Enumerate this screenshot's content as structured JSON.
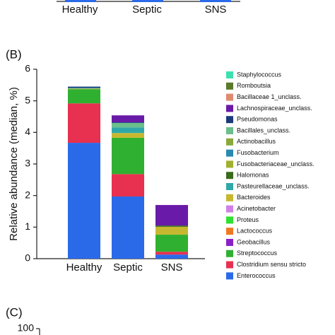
{
  "chart_data": [
    {
      "type": "bar",
      "categories": [
        "Healthy",
        "Septic",
        "SNS"
      ]
    },
    {
      "type": "stacked_bar",
      "label": "(B)",
      "ylabel": "Relative abundance (median, %)",
      "categories": [
        "Healthy",
        "Septic",
        "SNS"
      ],
      "ylim": [
        0,
        6
      ],
      "yticks": [
        0,
        1,
        2,
        3,
        4,
        5,
        6
      ],
      "series": [
        {
          "name": "Staphylococcus",
          "color": "#3de0b0",
          "values": [
            0,
            0,
            0
          ]
        },
        {
          "name": "Romboutsia",
          "color": "#5a7a2a",
          "values": [
            0,
            0,
            0
          ]
        },
        {
          "name": "Bacillaceae 1_unclass.",
          "color": "#e08a70",
          "values": [
            0,
            0,
            0
          ]
        },
        {
          "name": "Lachnospiraceae_unclass.",
          "color": "#6a1aa8",
          "values": [
            0,
            0.22,
            0.65
          ]
        },
        {
          "name": "Pseudomonas",
          "color": "#1a3a7a",
          "values": [
            0.04,
            0.02,
            0
          ]
        },
        {
          "name": "Bacillales_unclass.",
          "color": "#6abf8a",
          "values": [
            0,
            0.14,
            0
          ]
        },
        {
          "name": "Actinobacillus",
          "color": "#8aa83a",
          "values": [
            0,
            0,
            0
          ]
        },
        {
          "name": "Fusobacterium",
          "color": "#2a8ab0",
          "values": [
            0,
            0,
            0
          ]
        },
        {
          "name": "Fusobacteriaceae_unclass.",
          "color": "#a0b030",
          "values": [
            0,
            0,
            0
          ]
        },
        {
          "name": "Halomonas",
          "color": "#3a6a1a",
          "values": [
            0,
            0,
            0.04
          ]
        },
        {
          "name": "Pasteurellaceae_unclass.",
          "color": "#30a8a8",
          "values": [
            0.02,
            0.18,
            0
          ]
        },
        {
          "name": "Bacteroides",
          "color": "#c8b830",
          "values": [
            0.02,
            0.15,
            0.25
          ]
        },
        {
          "name": "Acinetobacter",
          "color": "#d080e8",
          "values": [
            0,
            0,
            0
          ]
        },
        {
          "name": "Proteus",
          "color": "#30e030",
          "values": [
            0,
            0,
            0
          ]
        },
        {
          "name": "Lactococcus",
          "color": "#f07820",
          "values": [
            0,
            0,
            0
          ]
        },
        {
          "name": "Geobacillus",
          "color": "#8a20c8",
          "values": [
            0,
            0,
            0
          ]
        },
        {
          "name": "Streptococcus",
          "color": "#30b030",
          "values": [
            0.45,
            1.15,
            0.54
          ]
        },
        {
          "name": "Clostridium sensu stricto",
          "color": "#e83050",
          "values": [
            1.25,
            0.71,
            0.09
          ]
        },
        {
          "name": "Enterococcus",
          "color": "#2a6ae8",
          "values": [
            3.67,
            1.97,
            0.13
          ]
        }
      ]
    },
    {
      "type": "bar",
      "label": "(C)",
      "yticks": [
        100
      ]
    }
  ]
}
